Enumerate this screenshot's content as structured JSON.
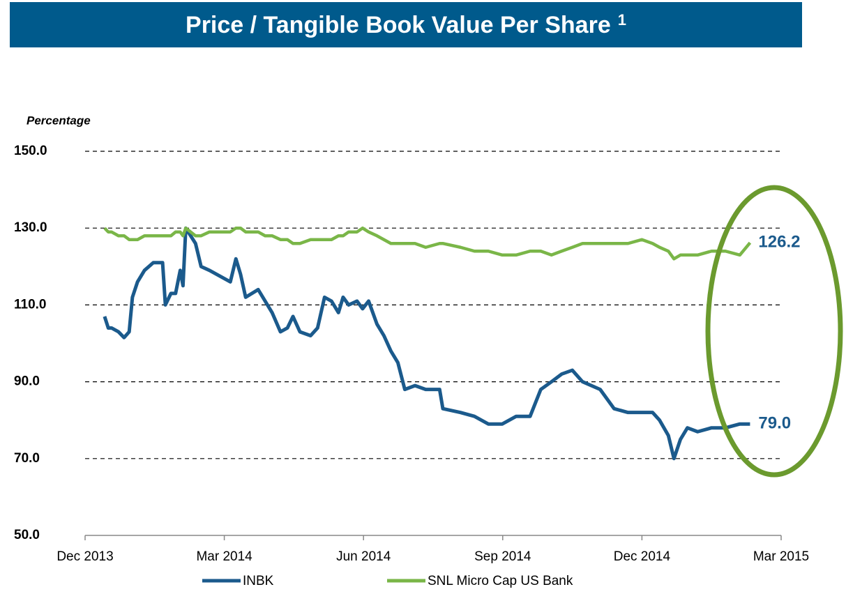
{
  "chart_data": {
    "type": "line",
    "title": "Price / Tangible Book Value Per Share",
    "title_superscript": "1",
    "ylabel": "Percentage",
    "x": [
      0.42,
      0.5,
      0.57,
      0.72,
      0.84,
      0.95,
      1.02,
      1.13,
      1.28,
      1.47,
      1.67,
      1.73,
      1.85,
      1.95,
      2.05,
      2.11,
      2.17,
      2.38,
      2.5,
      2.68,
      2.83,
      3.13,
      3.25,
      3.35,
      3.46,
      3.73,
      3.88,
      4.03,
      4.21,
      4.36,
      4.48,
      4.63,
      4.86,
      5.01,
      5.16,
      5.31,
      5.46,
      5.56,
      5.68,
      5.86,
      5.98,
      6.11,
      6.29,
      6.44,
      6.59,
      6.74,
      6.89,
      7.11,
      7.34,
      7.64,
      7.71,
      8.09,
      8.39,
      8.69,
      8.99,
      9.29,
      9.59,
      9.82,
      10.05,
      10.27,
      10.5,
      10.72,
      11.1,
      11.4,
      11.7,
      12.0,
      12.23,
      12.38,
      12.57,
      12.69,
      12.83,
      12.98,
      13.2,
      13.5,
      13.8,
      14.11,
      14.33
    ],
    "series": [
      {
        "name": "INBK",
        "color": "#1b5a8c",
        "end_label": "79.0",
        "values": [
          107,
          104,
          104,
          103,
          101.5,
          103,
          112,
          116,
          119,
          121,
          121,
          110,
          113,
          113,
          119,
          115,
          130,
          126,
          120,
          119,
          118,
          116,
          122,
          118,
          112,
          114,
          111,
          108,
          103,
          104,
          107,
          103,
          102,
          104,
          112,
          111,
          108,
          112,
          110,
          111,
          109,
          111,
          105,
          102,
          98,
          95,
          88,
          89,
          88,
          88,
          83,
          82,
          81,
          79,
          79,
          81,
          81,
          88,
          90,
          92,
          93,
          90,
          88,
          83,
          82,
          82,
          82,
          80,
          76,
          70,
          75,
          78,
          77,
          78,
          78,
          79,
          79
        ]
      },
      {
        "name": "SNL Micro Cap US Bank",
        "color": "#7ab648",
        "end_label": "126.2",
        "values": [
          130,
          129,
          129,
          128,
          128,
          127,
          127,
          127,
          128,
          128,
          128,
          128,
          128,
          129,
          129,
          128,
          130,
          128,
          128,
          129,
          129,
          129,
          130,
          130,
          129,
          129,
          128,
          128,
          127,
          127,
          126,
          126,
          127,
          127,
          127,
          127,
          128,
          128,
          129,
          129,
          130,
          129,
          128,
          127,
          126,
          126,
          126,
          126,
          125,
          126,
          126,
          125,
          124,
          124,
          123,
          123,
          124,
          124,
          123,
          124,
          125,
          126,
          126,
          126,
          126,
          127,
          126,
          125,
          124,
          122,
          123,
          123,
          123,
          124,
          124,
          123,
          126.2
        ]
      }
    ],
    "xlim": [
      0,
      15
    ],
    "xticks": [
      {
        "value": 0,
        "label": "Dec 2013"
      },
      {
        "value": 3,
        "label": "Mar 2014"
      },
      {
        "value": 6,
        "label": "Jun 2014"
      },
      {
        "value": 9,
        "label": "Sep 2014"
      },
      {
        "value": 12,
        "label": "Dec 2014"
      },
      {
        "value": 15,
        "label": "Mar 2015"
      }
    ],
    "ylim": [
      50,
      150
    ],
    "yticks": [
      {
        "value": 50,
        "label": "50.0"
      },
      {
        "value": 70,
        "label": "70.0"
      },
      {
        "value": 90,
        "label": "90.0"
      },
      {
        "value": 110,
        "label": "110.0"
      },
      {
        "value": 130,
        "label": "130.0"
      },
      {
        "value": 150,
        "label": "150.0"
      }
    ],
    "grid": true
  }
}
